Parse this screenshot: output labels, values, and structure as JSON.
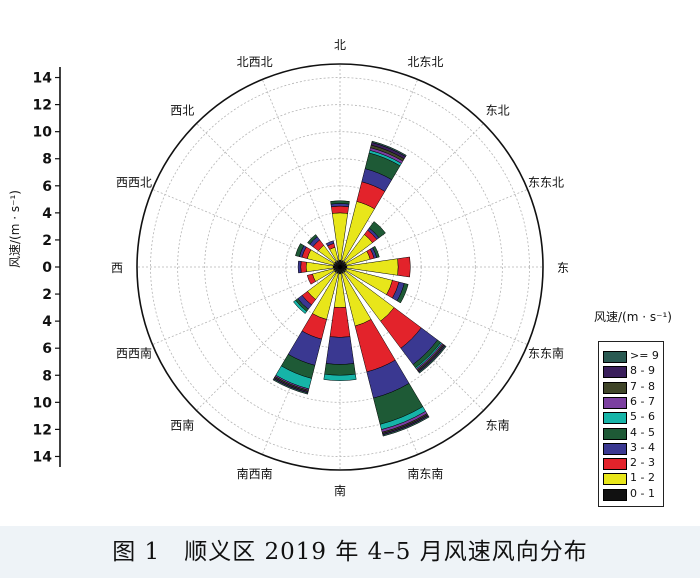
{
  "caption": "图 1　顺义区 2019 年 4–5 月风速风向分布",
  "chart_data": {
    "type": "wind-rose",
    "yaxis_title": "风速/(m · s⁻¹)",
    "radial_ticks": [
      14,
      12,
      10,
      8,
      6,
      4,
      2,
      0,
      2,
      4,
      6,
      8,
      10,
      12,
      14
    ],
    "rmax": 15,
    "directions": [
      "北",
      "北东北",
      "东北",
      "东东北",
      "东",
      "东东南",
      "东南",
      "南东南",
      "南",
      "南西南",
      "西南",
      "西西南",
      "西",
      "西西北",
      "西北",
      "北西北"
    ],
    "legend_title": "风速/(m · s⁻¹)",
    "legend": [
      {
        "label": ">= 9",
        "color": "#2a5a52"
      },
      {
        "label": "8 - 9",
        "color": "#3a1f5c"
      },
      {
        "label": "7 - 8",
        "color": "#3f4528"
      },
      {
        "label": "6 - 7",
        "color": "#7b3fa0"
      },
      {
        "label": "5 - 6",
        "color": "#16b4a8"
      },
      {
        "label": "4 - 5",
        "color": "#1e5a36"
      },
      {
        "label": "3 - 4",
        "color": "#3a3891"
      },
      {
        "label": "2 - 3",
        "color": "#e3232b"
      },
      {
        "label": "1 - 2",
        "color": "#e8e61a"
      },
      {
        "label": "0 - 1",
        "color": "#111111"
      }
    ],
    "series_order": [
      "0 - 1",
      "1 - 2",
      "2 - 3",
      "3 - 4",
      "4 - 5",
      "5 - 6",
      "6 - 7",
      "7 - 8",
      "8 - 9",
      ">= 9"
    ],
    "sectors": [
      {
        "dir": "北",
        "stack": [
          0.5,
          3.5,
          0.5,
          0.2,
          0.2,
          0,
          0,
          0,
          0,
          0
        ]
      },
      {
        "dir": "北东北",
        "stack": [
          0.5,
          4.5,
          1.5,
          1.0,
          1.2,
          0.2,
          0.2,
          0.2,
          0.2,
          0.1
        ]
      },
      {
        "dir": "东北",
        "stack": [
          0.5,
          2.5,
          0.4,
          0.2,
          0.6,
          0,
          0,
          0,
          0,
          0
        ]
      },
      {
        "dir": "东东北",
        "stack": [
          0.5,
          1.8,
          0.3,
          0.2,
          0.2,
          0,
          0,
          0,
          0,
          0
        ]
      },
      {
        "dir": "东",
        "stack": [
          0.5,
          3.8,
          0.9,
          0,
          0,
          0,
          0,
          0,
          0,
          0
        ]
      },
      {
        "dir": "东东南",
        "stack": [
          0.5,
          3.5,
          0.5,
          0.4,
          0.3,
          0,
          0,
          0,
          0,
          0
        ]
      },
      {
        "dir": "东南",
        "stack": [
          0.5,
          4.5,
          2.5,
          1.5,
          0.3,
          0.1,
          0.1,
          0.1,
          0.1,
          0.1
        ]
      },
      {
        "dir": "南东南",
        "stack": [
          0.5,
          4.0,
          3.5,
          2.0,
          2.0,
          0.4,
          0.2,
          0.1,
          0.1,
          0.1
        ]
      },
      {
        "dir": "南",
        "stack": [
          0.5,
          2.5,
          2.2,
          2.0,
          0.8,
          0.4,
          0,
          0,
          0,
          0
        ]
      },
      {
        "dir": "南西南",
        "stack": [
          0.5,
          3.5,
          1.5,
          2.0,
          1.0,
          0.8,
          0.1,
          0.1,
          0.1,
          0.1
        ]
      },
      {
        "dir": "西南",
        "stack": [
          0.5,
          2.5,
          0.5,
          0.4,
          0.2,
          0.2,
          0,
          0,
          0,
          0
        ]
      },
      {
        "dir": "西西南",
        "stack": [
          0.5,
          1.6,
          0.4,
          0,
          0,
          0,
          0,
          0,
          0,
          0
        ]
      },
      {
        "dir": "西",
        "stack": [
          0.5,
          2.0,
          0.4,
          0.2,
          0,
          0,
          0,
          0,
          0,
          0
        ]
      },
      {
        "dir": "西西北",
        "stack": [
          0.5,
          2.0,
          0.4,
          0.2,
          0.3,
          0,
          0,
          0,
          0,
          0
        ]
      },
      {
        "dir": "西北",
        "stack": [
          0.5,
          1.5,
          0.5,
          0.3,
          0.2,
          0,
          0,
          0,
          0,
          0
        ]
      },
      {
        "dir": "北西北",
        "stack": [
          0.5,
          1.0,
          0.3,
          0.2,
          0,
          0,
          0,
          0,
          0,
          0
        ]
      }
    ]
  }
}
